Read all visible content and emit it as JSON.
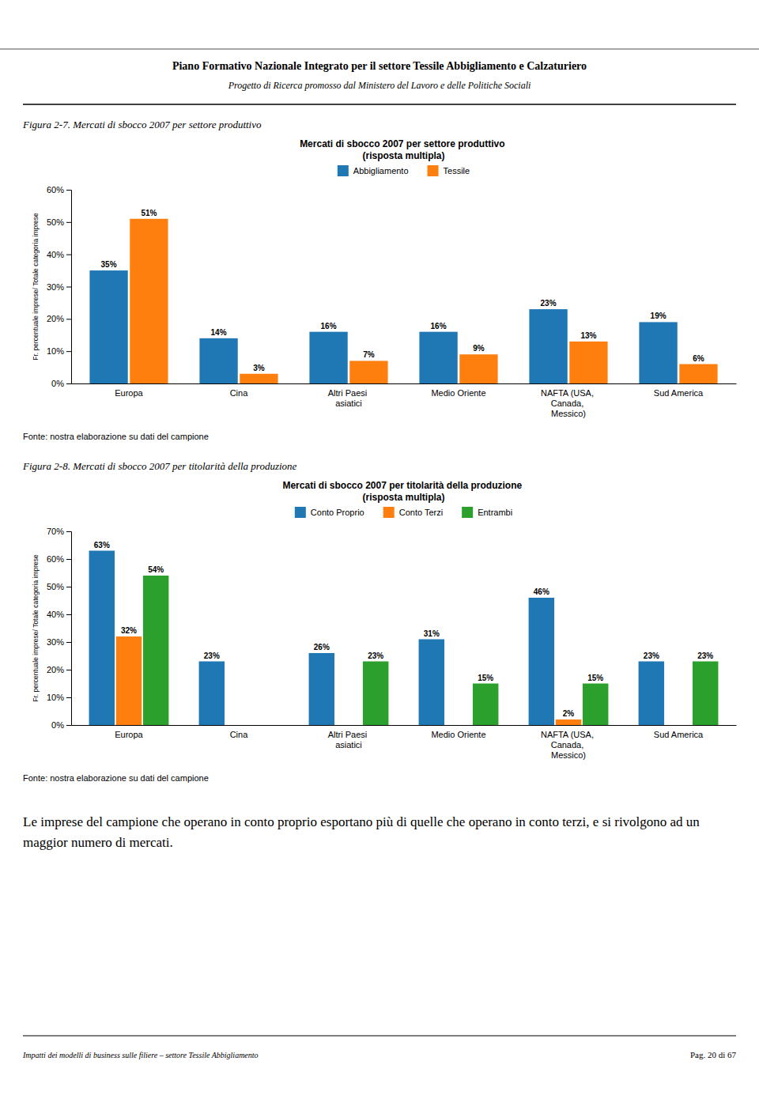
{
  "page_title": "Piano Formativo Nazionale Integrato per il settore Tessile Abbigliamento e Calzaturiero",
  "page_subtitle": "Progetto di Ricerca promosso dal Ministero del Lavoro e delle Politiche Sociali",
  "text": "Le imprese del campione che operano in conto proprio esportano più di quelle che operano in conto terzi, e si rivolgono ad un maggior numero di mercati.",
  "footer_left": "Impatti dei modelli di business sulle filiere – settore Tessile Abbigliamento",
  "footer_right": "Pag. 20 di 67",
  "chart_data": [
    {
      "type": "bar",
      "caption": "Figura 2-7. Mercati di sbocco 2007 per settore produttivo",
      "title": "Mercati di sbocco 2007 per settore produttivo\n(risposta multipla)",
      "source": "Fonte: nostra elaborazione su dati del campione",
      "ylabel": "Fr. percentuale imprese/ Totale categoria imprese",
      "categories": [
        "Europa",
        "Cina",
        "Altri Paesi\nasiatici",
        "Medio Oriente",
        "NAFTA (USA,\nCanada,\nMessico)",
        "Sud America"
      ],
      "series": [
        {
          "name": "Abbigliamento",
          "values": [
            35,
            14,
            16,
            16,
            23,
            19
          ],
          "value_labels": [
            "35%",
            "14%",
            "16%",
            "16%",
            "23%",
            "19%"
          ]
        },
        {
          "name": "Tessile",
          "values": [
            51,
            3,
            7,
            9,
            13,
            6
          ],
          "value_labels": [
            "51%",
            "3%",
            "7%",
            "9%",
            "13%",
            "6%"
          ]
        }
      ],
      "ylim": [
        0,
        60
      ],
      "yticks": [
        {
          "value": 0,
          "label": "0%"
        },
        {
          "value": 10,
          "label": "10%"
        },
        {
          "value": 20,
          "label": "20%"
        },
        {
          "value": 30,
          "label": "30%"
        },
        {
          "value": 40,
          "label": "40%"
        },
        {
          "value": 50,
          "label": "50%"
        },
        {
          "value": 60,
          "label": "60%"
        }
      ],
      "data_labels": true
    },
    {
      "type": "bar",
      "caption": "Figura 2-8. Mercati di sbocco 2007 per titolarità della produzione",
      "title": "Mercati di sbocco 2007 per titolarità della produzione\n(risposta multipla)",
      "source": "Fonte: nostra elaborazione su dati del campione",
      "ylabel": "Fr. percentuale imprese/ Totale categoria imprese",
      "categories": [
        "Europa",
        "Cina",
        "Altri Paesi\nasiatici",
        "Medio Oriente",
        "NAFTA (USA,\nCanada,\nMessico)",
        "Sud America"
      ],
      "series": [
        {
          "name": "Conto Proprio",
          "values": [
            63,
            23,
            26,
            31,
            46,
            23
          ],
          "value_labels": [
            "63%",
            "23%",
            "26%",
            "31%",
            "46%",
            "23%"
          ]
        },
        {
          "name": "Conto Terzi",
          "values": [
            32,
            0,
            0,
            0,
            2,
            0
          ],
          "value_labels": [
            "32%",
            null,
            null,
            null,
            "2%",
            null
          ]
        },
        {
          "name": "Entrambi",
          "values": [
            54,
            0,
            23,
            15,
            15,
            23
          ],
          "value_labels": [
            "54%",
            null,
            "23%",
            "15%",
            "15%",
            "23%"
          ]
        }
      ],
      "ylim": [
        0,
        70
      ],
      "yticks": [
        {
          "value": 0,
          "label": "0%"
        },
        {
          "value": 10,
          "label": "10%"
        },
        {
          "value": 20,
          "label": "20%"
        },
        {
          "value": 30,
          "label": "30%"
        },
        {
          "value": 40,
          "label": "40%"
        },
        {
          "value": 50,
          "label": "50%"
        },
        {
          "value": 60,
          "label": "60%"
        },
        {
          "value": 70,
          "label": "70%"
        }
      ],
      "data_labels": true
    }
  ]
}
